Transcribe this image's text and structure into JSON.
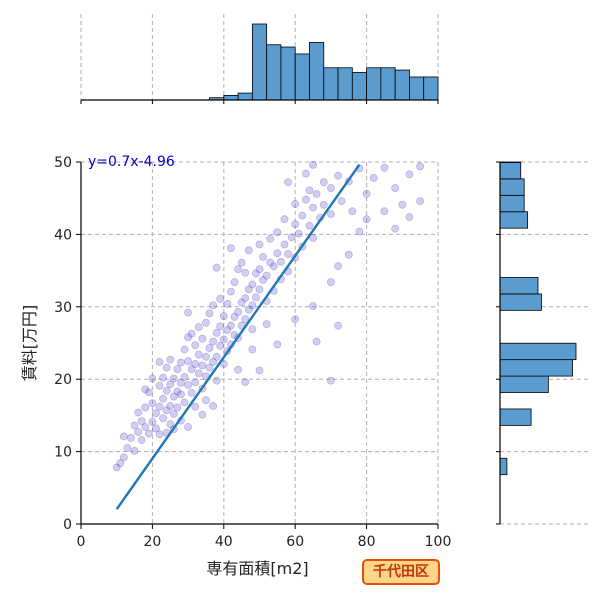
{
  "area_label": "千代田区",
  "colors": {
    "point": "#5a4fcf",
    "point_edge": "#3b2fb0",
    "fit_line": "#1f77b4",
    "hist_fill": "#5a9bd0",
    "hist_edge": "#000000",
    "grid": "#b0b0b0",
    "label_eq": "#0000cc",
    "badge_bg": "#ffd58a",
    "badge_border": "#e8500a",
    "badge_text": "#c0360b"
  },
  "chart_data": {
    "type": "scatter",
    "xlabel": "専有面積[m2]",
    "ylabel": "賃料[万円]",
    "xlim": [
      0,
      100
    ],
    "ylim": [
      0,
      50
    ],
    "x_ticks": [
      0,
      20,
      40,
      60,
      80,
      100
    ],
    "y_ticks": [
      0,
      10,
      20,
      30,
      40,
      50
    ],
    "grid": true,
    "fit": {
      "slope": 0.7,
      "intercept": -4.96,
      "x_range": [
        10,
        78
      ],
      "label": "y=0.7x-4.96"
    },
    "scatter_sample": [
      [
        10,
        7.8
      ],
      [
        11,
        8.4
      ],
      [
        12,
        9.2
      ],
      [
        12,
        12.1
      ],
      [
        13,
        10.5
      ],
      [
        14,
        11.9
      ],
      [
        15,
        10.1
      ],
      [
        15,
        13.6
      ],
      [
        16,
        12.7
      ],
      [
        16,
        15.4
      ],
      [
        17,
        11.6
      ],
      [
        17,
        14.2
      ],
      [
        18,
        13.4
      ],
      [
        18,
        16.1
      ],
      [
        19,
        12.5
      ],
      [
        19,
        18.2
      ],
      [
        20,
        14.1
      ],
      [
        20,
        16.7
      ],
      [
        21,
        15.3
      ],
      [
        21,
        13.2
      ],
      [
        22,
        16.2
      ],
      [
        22,
        19.1
      ],
      [
        22,
        12.4
      ],
      [
        23,
        17.3
      ],
      [
        23,
        14.6
      ],
      [
        23,
        20.2
      ],
      [
        24,
        15.7
      ],
      [
        24,
        18.4
      ],
      [
        24,
        21.6
      ],
      [
        25,
        16.3
      ],
      [
        25,
        19.3
      ],
      [
        25,
        22.7
      ],
      [
        25,
        13.8
      ],
      [
        26,
        17.6
      ],
      [
        26,
        20.1
      ],
      [
        26,
        15.2
      ],
      [
        27,
        18.3
      ],
      [
        27,
        21.4
      ],
      [
        27,
        16.1
      ],
      [
        28,
        17.9
      ],
      [
        28,
        22.3
      ],
      [
        28,
        19.5
      ],
      [
        29,
        20.3
      ],
      [
        29,
        24.1
      ],
      [
        29,
        16.8
      ],
      [
        30,
        19.2
      ],
      [
        30,
        22.5
      ],
      [
        30,
        25.8
      ],
      [
        31,
        21.4
      ],
      [
        31,
        18.1
      ],
      [
        31,
        26.3
      ],
      [
        32,
        22.1
      ],
      [
        32,
        19.6
      ],
      [
        32,
        24.7
      ],
      [
        33,
        20.8
      ],
      [
        33,
        27.2
      ],
      [
        33,
        23.4
      ],
      [
        34,
        21.9
      ],
      [
        34,
        25.6
      ],
      [
        34,
        18.7
      ],
      [
        35,
        23.1
      ],
      [
        35,
        27.8
      ],
      [
        35,
        20.4
      ],
      [
        36,
        24.3
      ],
      [
        36,
        29.1
      ],
      [
        36,
        21.6
      ],
      [
        37,
        25.2
      ],
      [
        37,
        22.4
      ],
      [
        37,
        30.2
      ],
      [
        38,
        26.4
      ],
      [
        38,
        23.1
      ],
      [
        38,
        19.8
      ],
      [
        39,
        27.3
      ],
      [
        39,
        24.6
      ],
      [
        39,
        31.1
      ],
      [
        40,
        25.5
      ],
      [
        40,
        28.7
      ],
      [
        40,
        22.1
      ],
      [
        41,
        26.8
      ],
      [
        41,
        30.4
      ],
      [
        41,
        23.9
      ],
      [
        42,
        27.4
      ],
      [
        42,
        32.1
      ],
      [
        42,
        24.8
      ],
      [
        43,
        28.6
      ],
      [
        43,
        26.1
      ],
      [
        43,
        33.4
      ],
      [
        44,
        29.3
      ],
      [
        44,
        25.7
      ],
      [
        44,
        35.2
      ],
      [
        45,
        30.6
      ],
      [
        45,
        27.4
      ],
      [
        45,
        36.1
      ],
      [
        46,
        31.2
      ],
      [
        46,
        28.3
      ],
      [
        46,
        34.7
      ],
      [
        47,
        32.4
      ],
      [
        47,
        29.6
      ],
      [
        47,
        37.8
      ],
      [
        48,
        33.1
      ],
      [
        48,
        30.2
      ],
      [
        48,
        26.9
      ],
      [
        49,
        34.6
      ],
      [
        49,
        31.3
      ],
      [
        50,
        35.2
      ],
      [
        50,
        32.4
      ],
      [
        50,
        38.6
      ],
      [
        51,
        33.7
      ],
      [
        51,
        36.9
      ],
      [
        52,
        34.3
      ],
      [
        52,
        30.8
      ],
      [
        53,
        36.1
      ],
      [
        53,
        39.4
      ],
      [
        54,
        35.6
      ],
      [
        54,
        32.2
      ],
      [
        55,
        37.4
      ],
      [
        55,
        40.3
      ],
      [
        56,
        36.2
      ],
      [
        56,
        33.8
      ],
      [
        57,
        38.6
      ],
      [
        57,
        42.1
      ],
      [
        58,
        37.3
      ],
      [
        58,
        34.9
      ],
      [
        59,
        39.6
      ],
      [
        60,
        41.4
      ],
      [
        60,
        36.8
      ],
      [
        60,
        44.2
      ],
      [
        61,
        40.1
      ],
      [
        62,
        42.6
      ],
      [
        62,
        38.3
      ],
      [
        63,
        44.8
      ],
      [
        64,
        41.2
      ],
      [
        64,
        46.1
      ],
      [
        65,
        43.7
      ],
      [
        65,
        39.5
      ],
      [
        66,
        45.6
      ],
      [
        67,
        42.3
      ],
      [
        68,
        47.2
      ],
      [
        68,
        44.1
      ],
      [
        70,
        46.4
      ],
      [
        70,
        42.8
      ],
      [
        72,
        48.1
      ],
      [
        73,
        44.6
      ],
      [
        75,
        47.3
      ],
      [
        76,
        43.2
      ],
      [
        78,
        49.1
      ],
      [
        80,
        45.6
      ],
      [
        82,
        47.8
      ],
      [
        85,
        49.2
      ],
      [
        88,
        46.4
      ],
      [
        90,
        44.1
      ],
      [
        92,
        48.3
      ],
      [
        95,
        49.4
      ],
      [
        30,
        29.2
      ],
      [
        38,
        35.4
      ],
      [
        42,
        38.1
      ],
      [
        55,
        24.8
      ],
      [
        60,
        28.3
      ],
      [
        65,
        30.1
      ],
      [
        70,
        33.4
      ],
      [
        72,
        35.6
      ],
      [
        75,
        37.2
      ],
      [
        78,
        40.4
      ],
      [
        80,
        42.1
      ],
      [
        24,
        12.6
      ],
      [
        26,
        13.1
      ],
      [
        28,
        14.3
      ],
      [
        32,
        16.2
      ],
      [
        35,
        17.1
      ],
      [
        44,
        21.3
      ],
      [
        48,
        24.1
      ],
      [
        52,
        27.6
      ],
      [
        22,
        22.4
      ],
      [
        20,
        20.1
      ],
      [
        18,
        18.6
      ],
      [
        65,
        49.6
      ],
      [
        58,
        47.2
      ],
      [
        63,
        48.4
      ],
      [
        85,
        43.2
      ],
      [
        88,
        40.8
      ],
      [
        92,
        42.4
      ],
      [
        95,
        44.6
      ],
      [
        70,
        19.8
      ],
      [
        66,
        25.2
      ],
      [
        72,
        27.4
      ],
      [
        50,
        21.2
      ],
      [
        46,
        19.6
      ],
      [
        30,
        13.4
      ],
      [
        34,
        15.1
      ],
      [
        37,
        16.3
      ]
    ],
    "x_hist": {
      "bin_start": 0,
      "bin_width": 4,
      "counts": [
        0,
        0,
        0,
        0,
        0,
        0,
        0,
        0,
        0,
        1,
        2,
        3,
        33,
        24,
        23,
        20,
        25,
        14,
        14,
        12,
        14,
        14,
        13,
        10,
        10,
        9,
        10,
        8,
        8,
        5,
        5,
        3,
        3
      ]
    },
    "y_hist": {
      "bin_start": 0,
      "bin_width": 2.27,
      "counts": [
        0,
        0,
        0,
        2,
        0,
        0,
        9,
        0,
        14,
        21,
        22,
        0,
        0,
        12,
        11,
        0,
        0,
        0,
        8,
        7,
        7,
        6,
        6,
        4,
        5,
        0,
        3,
        1,
        1,
        2,
        1
      ]
    }
  }
}
